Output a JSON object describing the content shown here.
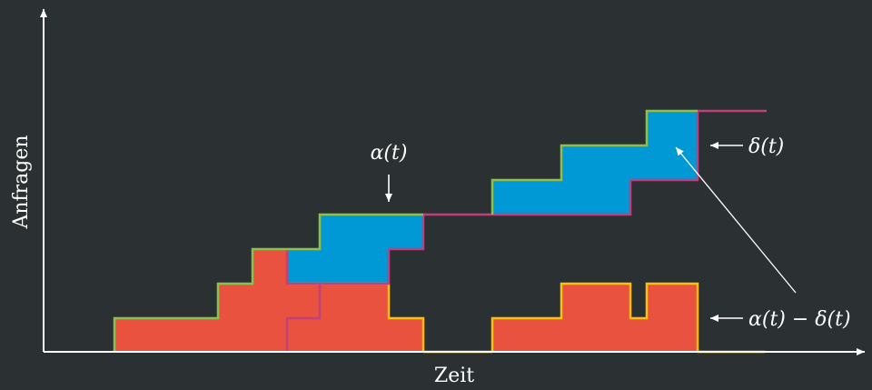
{
  "axes": {
    "x_label": "Zeit",
    "y_label": "Anfragen"
  },
  "labels": {
    "alpha": "α(t)",
    "delta": "δ(t)",
    "difference": "α(t) − δ(t)"
  },
  "colors": {
    "background": "#2b3132",
    "axis": "#ffffff",
    "arrival_curve": "#8bc34a",
    "departure_curve": "#c2407a",
    "backlog_fill": "#e8523f",
    "backlog_outline": "#ffc107",
    "gap_fill": "#0099d6"
  }
}
